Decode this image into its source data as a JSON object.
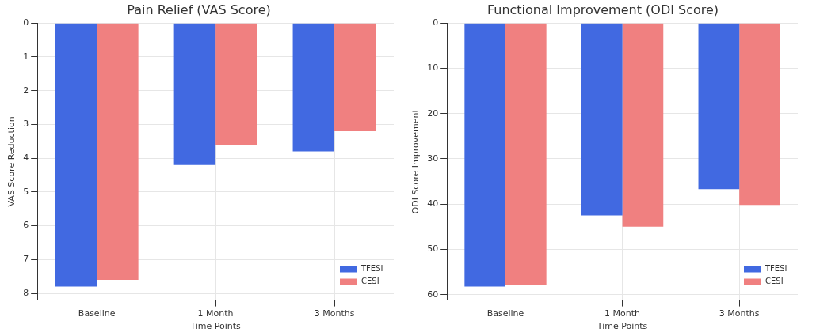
{
  "chart_data": [
    {
      "type": "bar",
      "title": "Pain Relief (VAS Score)",
      "xlabel": "Time Points",
      "ylabel": "VAS Score Reduction",
      "categories": [
        "Baseline",
        "1 Month",
        "3 Months"
      ],
      "series": [
        {
          "name": "TFESI",
          "color": "#4169e1",
          "values": [
            7.8,
            4.2,
            3.8
          ]
        },
        {
          "name": "CESI",
          "color": "#f08080",
          "values": [
            7.6,
            3.6,
            3.2
          ]
        }
      ],
      "ylim": [
        8.2,
        0
      ],
      "yticks": [
        0,
        1,
        2,
        3,
        4,
        5,
        6,
        7,
        8
      ],
      "grid": true,
      "legend": "bottom right"
    },
    {
      "type": "bar",
      "title": "Functional Improvement (ODI Score)",
      "xlabel": "Time Points",
      "ylabel": "ODI Score Improvement",
      "categories": [
        "Baseline",
        "1 Month",
        "3 Months"
      ],
      "series": [
        {
          "name": "TFESI",
          "color": "#4169e1",
          "values": [
            58.2,
            42.5,
            36.7
          ]
        },
        {
          "name": "CESI",
          "color": "#f08080",
          "values": [
            57.8,
            45,
            40.2
          ]
        }
      ],
      "ylim": [
        61.2,
        0
      ],
      "yticks": [
        0,
        10,
        20,
        30,
        40,
        50,
        60
      ],
      "grid": true,
      "legend": "bottom right"
    }
  ]
}
